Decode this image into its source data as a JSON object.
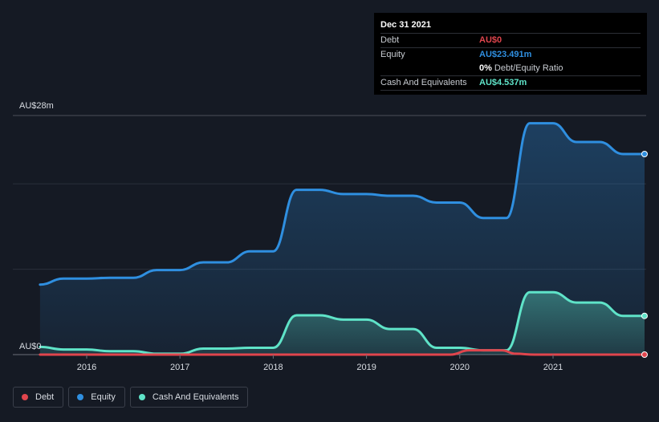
{
  "chart_data": {
    "type": "area",
    "title": "",
    "xlabel": "",
    "ylabel": "",
    "currency": "AU$",
    "ylim": [
      0,
      28
    ],
    "y_tick_labels": [
      "AU$0",
      "AU$28m"
    ],
    "x_tick_labels": [
      "2016",
      "2017",
      "2018",
      "2019",
      "2020",
      "2021"
    ],
    "x_tick_values": [
      2016.0,
      2017.0,
      2018.0,
      2019.0,
      2020.0,
      2021.0
    ],
    "grid": true,
    "series": [
      {
        "name": "Equity",
        "color": "#2f8fe0",
        "x": [
          2015.5,
          2015.75,
          2016.0,
          2016.25,
          2016.5,
          2016.75,
          2017.0,
          2017.25,
          2017.5,
          2017.75,
          2018.0,
          2018.25,
          2018.5,
          2018.75,
          2019.0,
          2019.25,
          2019.5,
          2019.75,
          2020.0,
          2020.25,
          2020.5,
          2020.75,
          2021.0,
          2021.25,
          2021.5,
          2021.75,
          2022.0
        ],
        "values": [
          8.2,
          8.9,
          8.9,
          9.0,
          9.0,
          9.9,
          9.9,
          10.8,
          10.8,
          12.1,
          12.1,
          19.3,
          19.3,
          18.8,
          18.8,
          18.6,
          18.6,
          17.8,
          17.8,
          16.0,
          16.0,
          27.1,
          27.1,
          24.9,
          24.9,
          23.491,
          23.491
        ]
      },
      {
        "name": "Cash And Equivalents",
        "color": "#5fe3c8",
        "x": [
          2015.5,
          2015.75,
          2016.0,
          2016.25,
          2016.5,
          2016.75,
          2017.0,
          2017.25,
          2017.5,
          2017.75,
          2018.0,
          2018.25,
          2018.5,
          2018.75,
          2019.0,
          2019.25,
          2019.5,
          2019.75,
          2020.0,
          2020.25,
          2020.5,
          2020.75,
          2021.0,
          2021.25,
          2021.5,
          2021.75,
          2022.0
        ],
        "values": [
          0.9,
          0.6,
          0.6,
          0.4,
          0.4,
          0.1,
          0.1,
          0.7,
          0.7,
          0.8,
          0.8,
          4.6,
          4.6,
          4.1,
          4.1,
          3.0,
          3.0,
          0.8,
          0.8,
          0.5,
          0.5,
          7.3,
          7.3,
          6.1,
          6.1,
          4.537,
          4.537
        ]
      },
      {
        "name": "Debt",
        "color": "#e0454d",
        "x": [
          2015.5,
          2016.0,
          2017.0,
          2018.0,
          2019.0,
          2019.9,
          2020.1,
          2020.45,
          2020.6,
          2020.8,
          2021.0,
          2022.0
        ],
        "values": [
          0,
          0,
          0,
          0,
          0,
          0,
          0.5,
          0.5,
          0.1,
          0,
          0,
          0
        ]
      }
    ]
  },
  "tooltip": {
    "date": "Dec 31 2021",
    "debt_label": "Debt",
    "debt_value": "AU$0",
    "equity_label": "Equity",
    "equity_value": "AU$23.491m",
    "ratio_value": "0%",
    "ratio_label": "Debt/Equity Ratio",
    "cash_label": "Cash And Equivalents",
    "cash_value": "AU$4.537m"
  },
  "legend": [
    {
      "label": "Debt",
      "color": "#e0454d"
    },
    {
      "label": "Equity",
      "color": "#2f8fe0"
    },
    {
      "label": "Cash And Equivalents",
      "color": "#5fe3c8"
    }
  ]
}
